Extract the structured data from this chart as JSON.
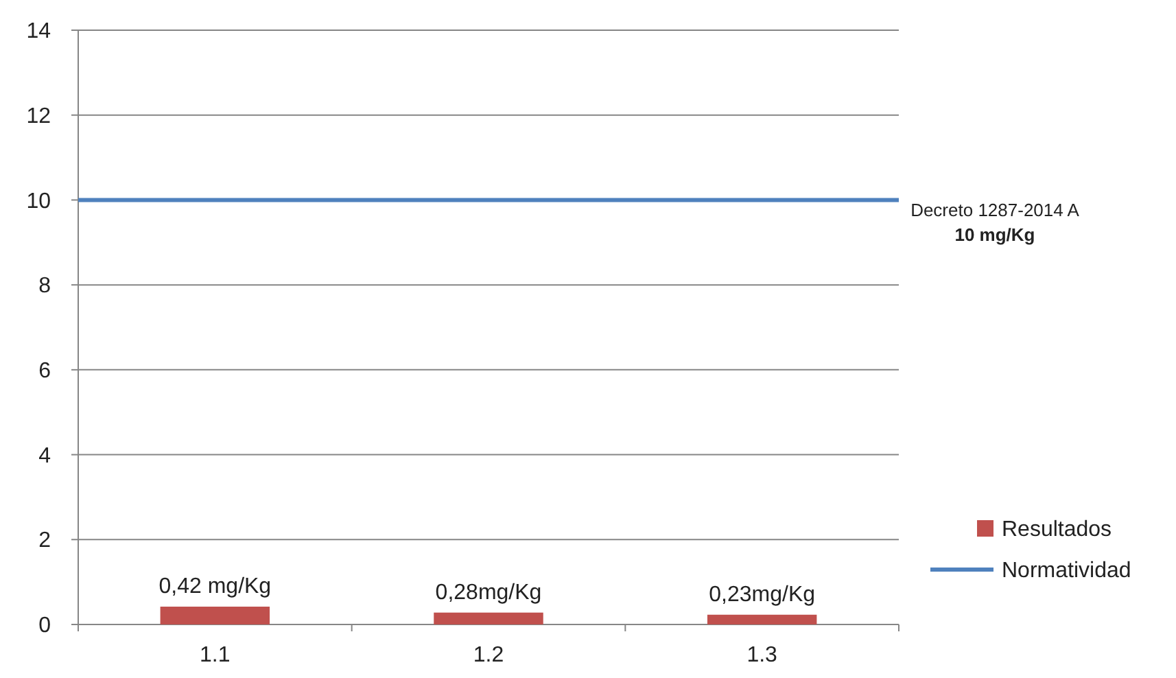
{
  "chart_data": {
    "type": "bar",
    "categories": [
      "1.1",
      "1.2",
      "1.3"
    ],
    "series": [
      {
        "name": "Resultados",
        "color": "#c0504d",
        "values": [
          0.42,
          0.28,
          0.23
        ],
        "value_labels": [
          "0,42 mg/Kg",
          "0,28mg/Kg",
          "0,23mg/Kg"
        ]
      }
    ],
    "ylim": [
      0,
      14
    ],
    "yticks": [
      0,
      2,
      4,
      6,
      8,
      10,
      12,
      14
    ],
    "grid": "y",
    "legend": "right",
    "ref_lines": [
      {
        "axis": "y",
        "value": 10,
        "label": "Normatividad",
        "color": "#4f81bd"
      }
    ],
    "annotations": [
      "Decreto 1287-2014 A",
      "10 mg/Kg"
    ]
  }
}
